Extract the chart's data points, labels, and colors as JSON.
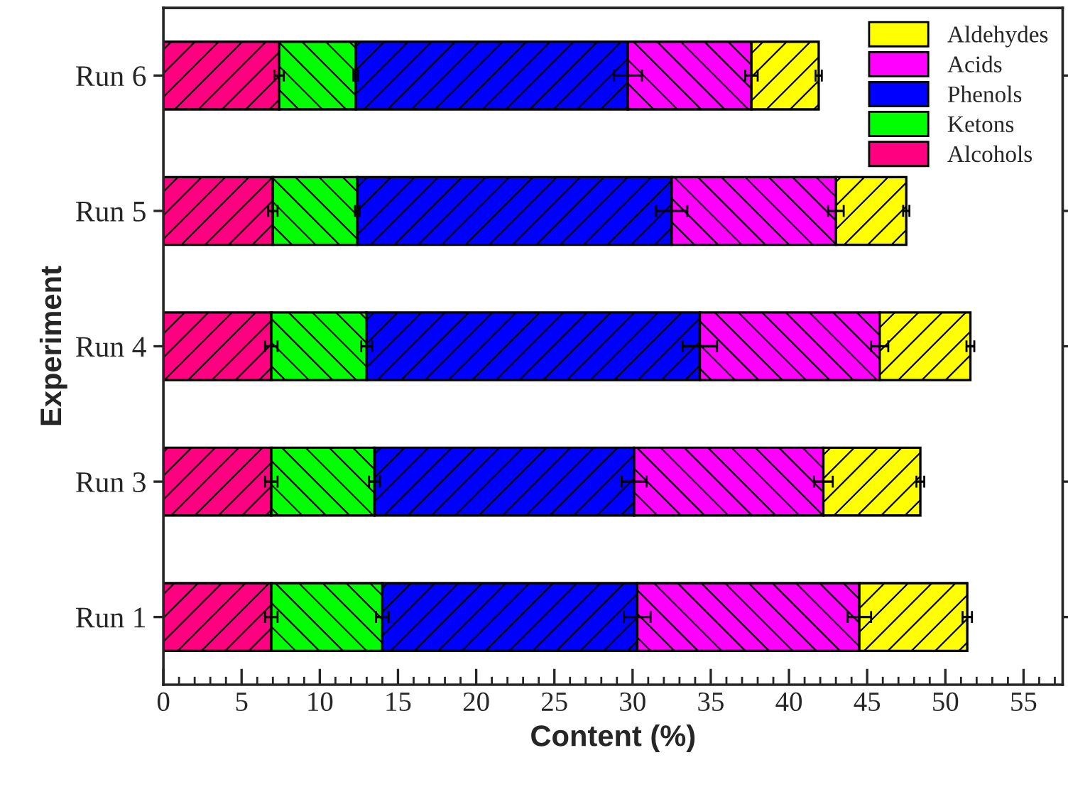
{
  "chart_data": {
    "type": "bar",
    "orientation": "horizontal",
    "stacked": true,
    "xlabel": "Content (%)",
    "ylabel": "Experiment",
    "categories": [
      "Run 6",
      "Run 5",
      "Run 4",
      "Run 3",
      "Run 1"
    ],
    "series": [
      {
        "name": "Alcohols",
        "color": "#ff0080",
        "values": [
          7.4,
          7.0,
          6.9,
          6.9,
          6.9
        ],
        "errors": [
          0.3,
          0.3,
          0.4,
          0.4,
          0.4
        ]
      },
      {
        "name": "Ketons",
        "color": "#00ff00",
        "values": [
          4.9,
          5.4,
          6.1,
          6.6,
          7.1
        ],
        "errors": [
          0.15,
          0.15,
          0.35,
          0.35,
          0.4
        ]
      },
      {
        "name": "Phenols",
        "color": "#0000ff",
        "values": [
          17.4,
          20.1,
          21.3,
          16.6,
          16.3
        ],
        "errors": [
          0.9,
          1.0,
          1.1,
          0.8,
          0.85
        ]
      },
      {
        "name": "Acids",
        "color": "#ff00ff",
        "values": [
          7.9,
          10.5,
          11.5,
          12.1,
          14.2
        ],
        "errors": [
          0.4,
          0.5,
          0.55,
          0.6,
          0.75
        ]
      },
      {
        "name": "Aldehydes",
        "color": "#ffff00",
        "values": [
          4.3,
          4.5,
          5.8,
          6.2,
          6.9
        ],
        "errors": [
          0.2,
          0.2,
          0.25,
          0.25,
          0.3
        ]
      }
    ],
    "xlim": [
      0,
      57.5
    ],
    "xticks": [
      0,
      5,
      10,
      15,
      20,
      25,
      30,
      35,
      40,
      45,
      50,
      55
    ],
    "legend": "top right",
    "grid": false
  }
}
